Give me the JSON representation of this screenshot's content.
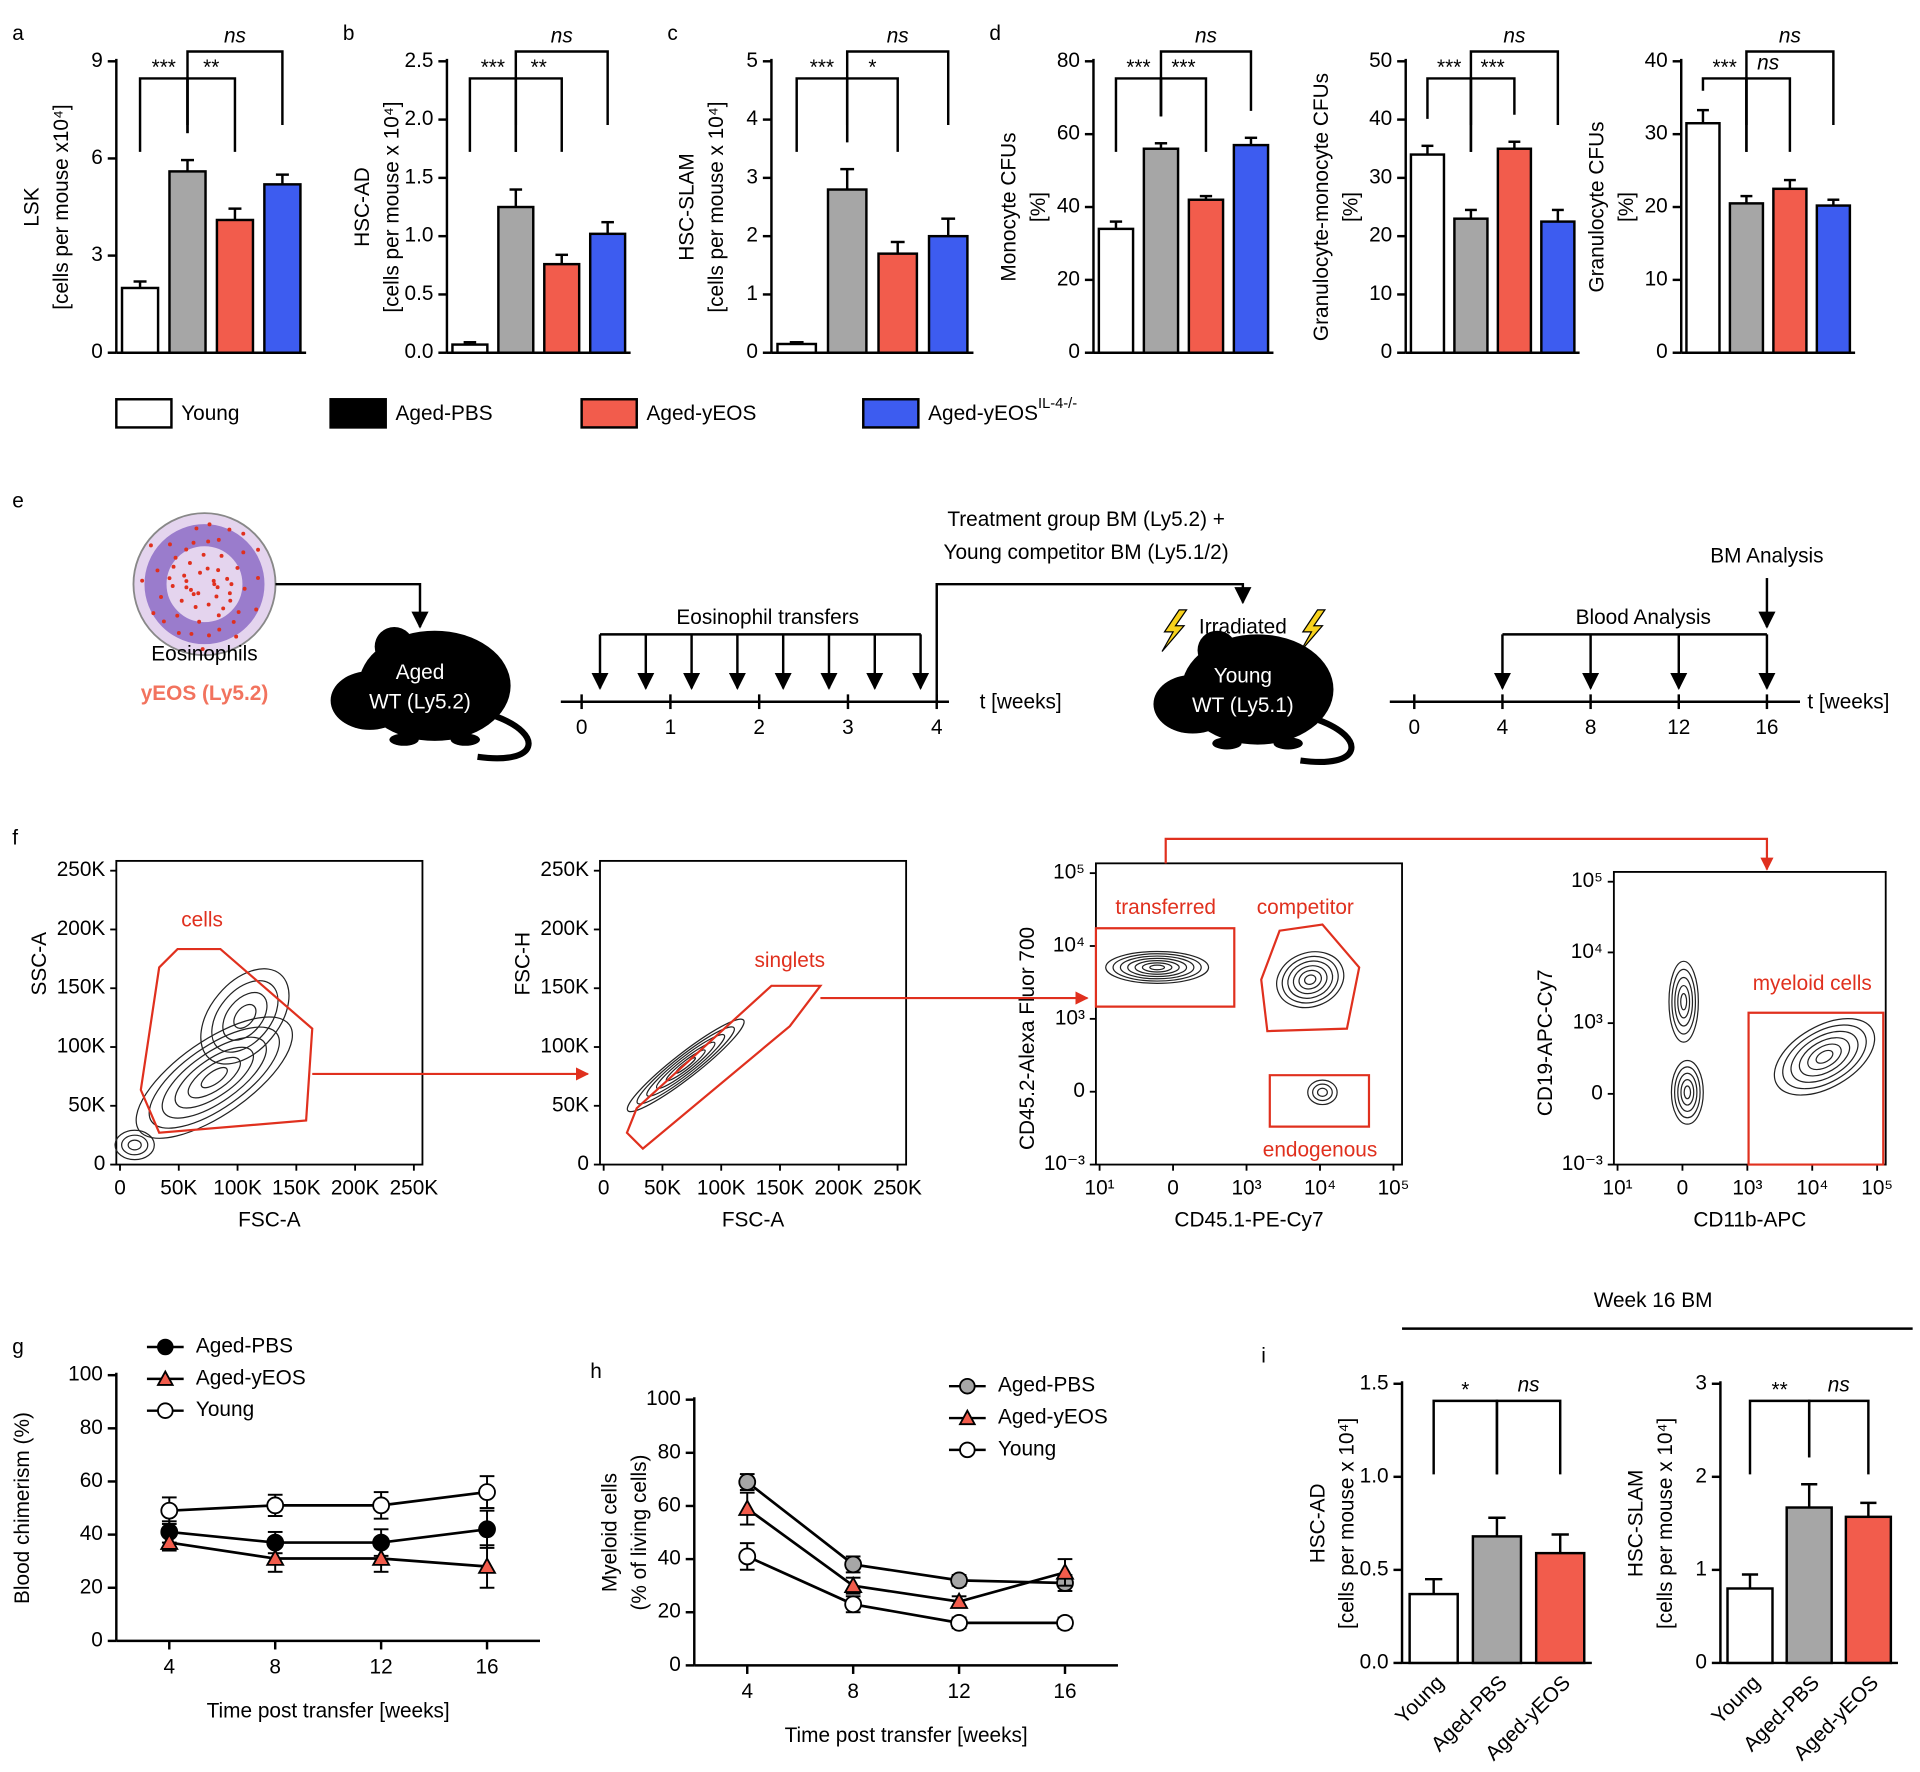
{
  "legend": [
    {
      "name": "Young",
      "color": "#ffffff"
    },
    {
      "name": "Aged-PBS",
      "color": "#000000"
    },
    {
      "name": "Aged-yEOS",
      "color": "#f25c4c"
    },
    {
      "name": "Aged-yEOS",
      "sup": "IL-4-/-",
      "color": "#3d5cf0"
    }
  ],
  "chart_data": [
    {
      "type": "bar",
      "panel": "a",
      "ylabel": "LSK",
      "ylabel2": "[cells per mouse x10⁴]",
      "colors": [
        "#ffffff",
        "#a6a6a6",
        "#f25c4c",
        "#3d5cf0"
      ],
      "values": [
        2.0,
        5.6,
        4.1,
        5.2
      ],
      "errors": [
        0.2,
        0.35,
        0.35,
        0.3
      ],
      "ylim": [
        0,
        9
      ],
      "yticks": [
        0,
        3,
        6,
        9
      ],
      "brackets": [
        {
          "between": [
            0,
            1
          ],
          "label": "***"
        },
        {
          "between": [
            1,
            2
          ],
          "label": "**"
        },
        {
          "between": [
            1,
            3
          ],
          "label": "ns"
        }
      ]
    },
    {
      "type": "bar",
      "panel": "b",
      "ylabel": "HSC-AD",
      "ylabel2": "[cells per mouse  x 10⁴]",
      "colors": [
        "#ffffff",
        "#a6a6a6",
        "#f25c4c",
        "#3d5cf0"
      ],
      "values": [
        0.07,
        1.25,
        0.76,
        1.02
      ],
      "errors": [
        0.02,
        0.15,
        0.08,
        0.1
      ],
      "ylim": [
        0,
        2.5
      ],
      "yticks": [
        {
          "value": 0,
          "label": "0.0"
        },
        0.5,
        {
          "value": 1,
          "label": "1.0"
        },
        1.5,
        {
          "value": 2,
          "label": "2.0"
        },
        2.5
      ],
      "brackets": [
        {
          "between": [
            0,
            1
          ],
          "label": "***"
        },
        {
          "between": [
            1,
            2
          ],
          "label": "**"
        },
        {
          "between": [
            1,
            3
          ],
          "label": "ns"
        }
      ]
    },
    {
      "type": "bar",
      "panel": "c",
      "ylabel": "HSC-SLAM",
      "ylabel2": "[cells per mouse  x 10⁴]",
      "colors": [
        "#ffffff",
        "#a6a6a6",
        "#f25c4c",
        "#3d5cf0"
      ],
      "values": [
        0.15,
        2.8,
        1.7,
        2.0
      ],
      "errors": [
        0.03,
        0.35,
        0.2,
        0.3
      ],
      "ylim": [
        0,
        5
      ],
      "yticks": [
        0,
        1,
        2,
        3,
        4,
        5
      ],
      "brackets": [
        {
          "between": [
            0,
            1
          ],
          "label": "***"
        },
        {
          "between": [
            1,
            2
          ],
          "label": "*"
        },
        {
          "between": [
            1,
            3
          ],
          "label": "ns"
        }
      ]
    },
    {
      "type": "bar",
      "panel": "d",
      "ylabel": "Monocyte CFUs",
      "ylabel2": "[%]",
      "colors": [
        "#ffffff",
        "#a6a6a6",
        "#f25c4c",
        "#3d5cf0"
      ],
      "values": [
        34,
        56,
        42,
        57
      ],
      "errors": [
        2,
        1.5,
        1,
        2
      ],
      "ylim": [
        0,
        80
      ],
      "yticks": [
        0,
        20,
        40,
        60,
        80
      ],
      "brackets": [
        {
          "between": [
            0,
            1
          ],
          "label": "***"
        },
        {
          "between": [
            1,
            2
          ],
          "label": "***"
        },
        {
          "between": [
            1,
            3
          ],
          "label": "ns"
        }
      ]
    },
    {
      "type": "bar",
      "ylabel": "Granulocyte-monocyte CFUs",
      "ylabel2": "[%]",
      "colors": [
        "#ffffff",
        "#a6a6a6",
        "#f25c4c",
        "#3d5cf0"
      ],
      "values": [
        34,
        23,
        35,
        22.5
      ],
      "errors": [
        1.5,
        1.5,
        1.2,
        2
      ],
      "ylim": [
        0,
        50
      ],
      "yticks": [
        0,
        10,
        20,
        30,
        40,
        50
      ],
      "brackets": [
        {
          "between": [
            0,
            1
          ],
          "label": "***"
        },
        {
          "between": [
            1,
            2
          ],
          "label": "***"
        },
        {
          "between": [
            1,
            3
          ],
          "label": "ns"
        }
      ]
    },
    {
      "type": "bar",
      "ylabel": "Granulocyte CFUs",
      "ylabel2": "[%]",
      "colors": [
        "#ffffff",
        "#a6a6a6",
        "#f25c4c",
        "#3d5cf0"
      ],
      "values": [
        31.5,
        20.5,
        22.5,
        20.2
      ],
      "errors": [
        1.8,
        1,
        1.2,
        0.8
      ],
      "ylim": [
        0,
        40
      ],
      "yticks": [
        0,
        10,
        20,
        30,
        40
      ],
      "brackets": [
        {
          "between": [
            0,
            1
          ],
          "label": "***"
        },
        {
          "between": [
            1,
            2
          ],
          "label": "ns"
        },
        {
          "between": [
            1,
            3
          ],
          "label": "ns"
        }
      ]
    },
    {
      "type": "line",
      "panel": "g",
      "xlabel": "Time post transfer [weeks]",
      "ylabel": "Blood chimerism (%)",
      "x": [
        4,
        8,
        12,
        16
      ],
      "xlim": [
        2,
        18
      ],
      "xticks": [
        4,
        8,
        12,
        16
      ],
      "ylim": [
        0,
        100
      ],
      "yticks": [
        0,
        20,
        40,
        60,
        80,
        100
      ],
      "series": [
        {
          "name": "Aged-PBS",
          "color": "#000000",
          "marker": "circle",
          "values": [
            41,
            37,
            37,
            42
          ],
          "errors": [
            4,
            4,
            5,
            7
          ]
        },
        {
          "name": "Aged-yEOS",
          "color": "#f25c4c",
          "marker": "triangle",
          "values": [
            37,
            31,
            31,
            28
          ],
          "errors": [
            3,
            5,
            5,
            8
          ]
        },
        {
          "name": "Young",
          "color": "#ffffff",
          "marker": "circle",
          "values": [
            49,
            51,
            51,
            56
          ],
          "errors": [
            5,
            4,
            5,
            6
          ]
        }
      ]
    },
    {
      "type": "line",
      "panel": "h",
      "xlabel": "Time post transfer [weeks]",
      "ylabel": "Myeloid cells",
      "ylabel2": "(% of living cells)",
      "x": [
        4,
        8,
        12,
        16
      ],
      "xlim": [
        2,
        18
      ],
      "xticks": [
        4,
        8,
        12,
        16
      ],
      "ylim": [
        0,
        100
      ],
      "yticks": [
        0,
        20,
        40,
        60,
        80,
        100
      ],
      "series": [
        {
          "name": "Aged-PBS",
          "color": "#a6a6a6",
          "marker": "circle",
          "values": [
            69,
            38,
            32,
            31
          ],
          "errors": [
            3,
            3,
            2,
            3
          ]
        },
        {
          "name": "Aged-yEOS",
          "color": "#f25c4c",
          "marker": "triangle",
          "values": [
            59,
            30,
            24,
            35
          ],
          "errors": [
            6,
            3,
            2,
            5
          ]
        },
        {
          "name": "Young",
          "color": "#ffffff",
          "marker": "circle",
          "values": [
            41,
            23,
            16,
            16
          ],
          "errors": [
            5,
            3,
            2,
            2
          ]
        }
      ]
    },
    {
      "type": "bar",
      "panel": "i",
      "ylabel": "HSC-AD",
      "ylabel2": "[cells per mouse x 10⁴]",
      "categories": [
        "Young",
        "Aged-PBS",
        "Aged-yEOS"
      ],
      "colors": [
        "#ffffff",
        "#a6a6a6",
        "#f25c4c"
      ],
      "values": [
        0.37,
        0.68,
        0.59
      ],
      "errors": [
        0.08,
        0.1,
        0.1
      ],
      "ylim": [
        0,
        1.5
      ],
      "yticks": [
        {
          "value": 0,
          "label": "0.0"
        },
        0.5,
        {
          "value": 1,
          "label": "1.0"
        },
        1.5
      ],
      "brackets": [
        {
          "between": [
            0,
            1
          ],
          "label": "*"
        },
        {
          "between": [
            1,
            2
          ],
          "label": "ns"
        }
      ]
    },
    {
      "type": "bar",
      "ylabel": "HSC-SLAM",
      "ylabel2": "[cells per mouse x 10⁴]",
      "categories": [
        "Young",
        "Aged-PBS",
        "Aged-yEOS"
      ],
      "colors": [
        "#ffffff",
        "#a6a6a6",
        "#f25c4c"
      ],
      "values": [
        0.8,
        1.67,
        1.57
      ],
      "errors": [
        0.15,
        0.25,
        0.15
      ],
      "ylim": [
        0,
        3
      ],
      "yticks": [
        0,
        1,
        2,
        3
      ],
      "brackets": [
        {
          "between": [
            0,
            1
          ],
          "label": "**"
        },
        {
          "between": [
            1,
            2
          ],
          "label": "ns"
        }
      ]
    }
  ],
  "week16_header": "Week 16 BM",
  "panel_e": {
    "label": "e",
    "cell_label": "Eosinophils",
    "cell_source": "yEOS (Ly5.2)",
    "mouse1": [
      "Aged",
      "WT (Ly5.2)"
    ],
    "transfers_label": "Eosinophil transfers",
    "timeline1_ticks": [
      0,
      1,
      2,
      3,
      4
    ],
    "t_label1": "t [weeks]",
    "treatment": [
      "Treatment group BM (Ly5.2) +",
      "Young competitor BM (Ly5.1/2)"
    ],
    "irradiated": "Irradiated",
    "mouse2": [
      "Young",
      "WT (Ly5.1)"
    ],
    "bm_analysis": "BM Analysis",
    "blood_analysis": "Blood Analysis",
    "timeline2_ticks": [
      0,
      4,
      8,
      12,
      16
    ],
    "t_label2": "t [weeks]"
  },
  "panel_f": {
    "label": "f",
    "plots": [
      {
        "ylabel": "SSC-A",
        "xlabel": "FSC-A",
        "yticks": [
          "250K",
          "200K",
          "150K",
          "100K",
          "50K",
          "0"
        ],
        "xticks": [
          "0",
          "50K",
          "100K",
          "150K",
          "200K",
          "250K"
        ],
        "gates": [
          "cells"
        ]
      },
      {
        "ylabel": "FSC-H",
        "xlabel": "FSC-A",
        "yticks": [
          "250K",
          "200K",
          "150K",
          "100K",
          "50K",
          "0"
        ],
        "xticks": [
          "0",
          "50K",
          "100K",
          "150K",
          "200K",
          "250K"
        ],
        "gates": [
          "singlets"
        ]
      },
      {
        "ylabel": "CD45.2-Alexa Fluor 700",
        "xlabel": "CD45.1-PE-Cy7",
        "yticks": [
          "10⁵",
          "10⁴",
          "10³",
          "0",
          "10⁻³"
        ],
        "xticks": [
          "10¹",
          "0",
          "10³",
          "10⁴",
          "10⁵"
        ],
        "gates": [
          "transferred",
          "competitor",
          "endogenous"
        ]
      },
      {
        "ylabel": "CD19-APC-Cy7",
        "xlabel": "CD11b-APC",
        "yticks": [
          "10⁵",
          "10⁴",
          "10³",
          "0",
          "10⁻³"
        ],
        "xticks": [
          "10¹",
          "0",
          "10³",
          "10⁴",
          "10⁵"
        ],
        "gates": [
          "myeloid cells"
        ]
      }
    ]
  }
}
